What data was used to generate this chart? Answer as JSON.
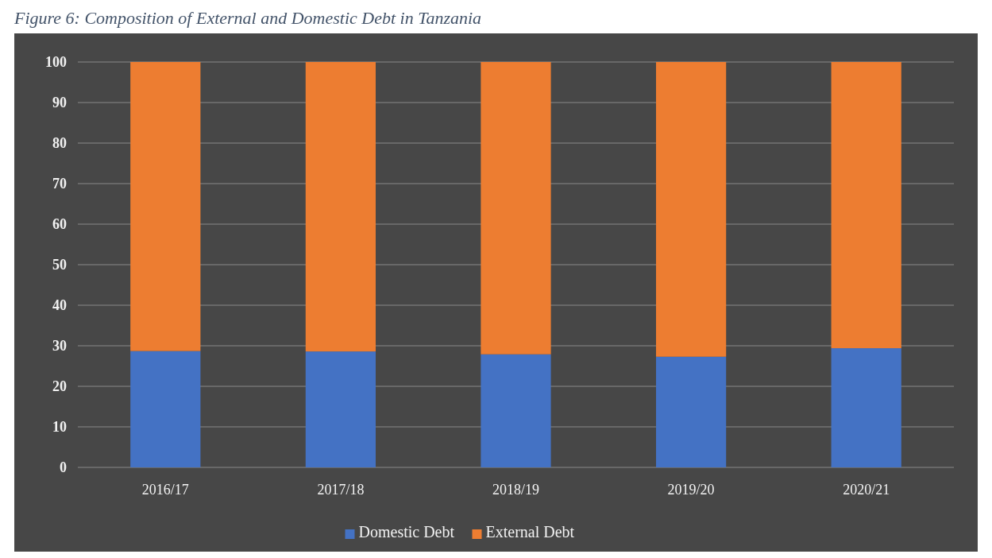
{
  "chart_data": {
    "type": "bar",
    "title": "Figure 6: Composition of External and Domestic Debt in Tanzania",
    "categories": [
      "2016/17",
      "2017/18",
      "2018/19",
      "2019/20",
      "2020/21"
    ],
    "stacked": true,
    "series": [
      {
        "name": "Domestic Debt",
        "color": "#4472c4",
        "values": [
          28.7,
          28.6,
          27.9,
          27.3,
          29.4
        ]
      },
      {
        "name": "External Debt",
        "color": "#ed7d31",
        "values": [
          71.3,
          71.4,
          72.1,
          72.7,
          70.6
        ]
      }
    ],
    "ylim": [
      0,
      100
    ],
    "yticks": [
      0,
      10,
      20,
      30,
      40,
      50,
      60,
      70,
      80,
      90,
      100
    ],
    "grid": "y",
    "legend": "bottom"
  }
}
